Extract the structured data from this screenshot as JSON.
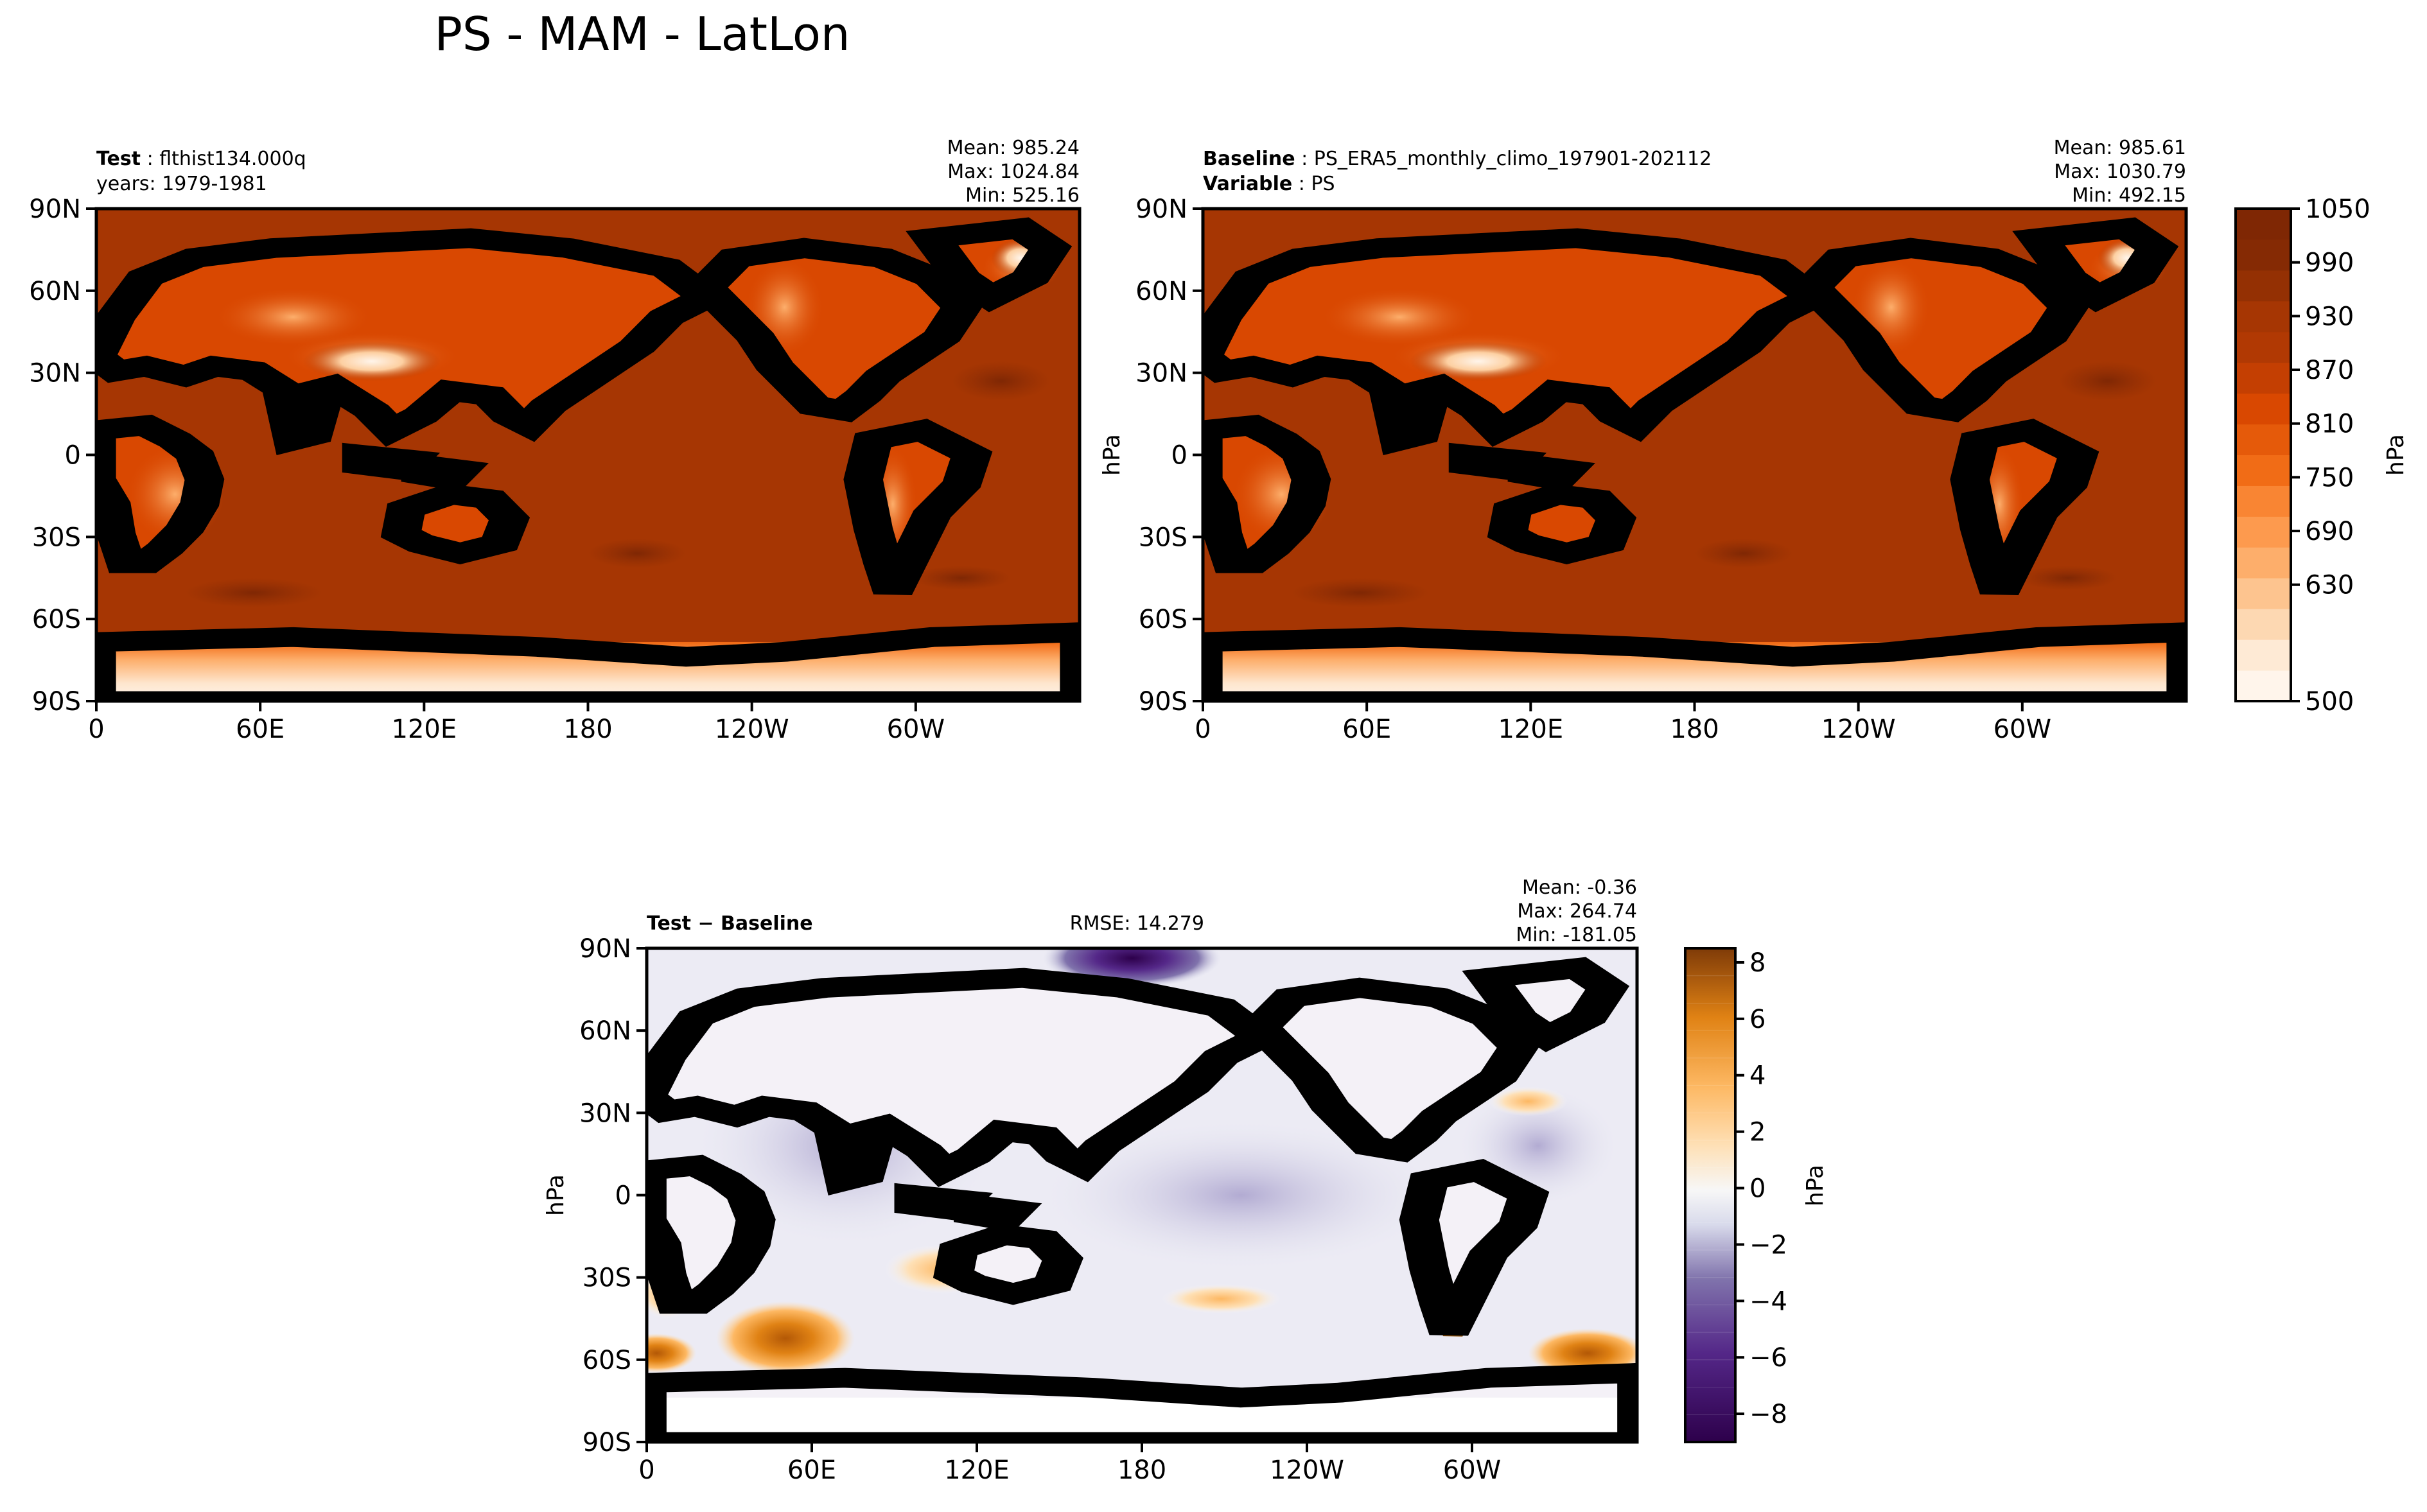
{
  "figure": {
    "title": "PS - MAM - LatLon"
  },
  "chart_data": [
    {
      "type": "heatmap",
      "panel": "test",
      "labels": {
        "test_key": "Test",
        "test_value": "flthist134.000q",
        "years": "years: 1979-1981"
      },
      "stats": [
        "Mean: 985.24",
        "Max: 1024.84",
        "Min: 525.16"
      ],
      "lon_ticks": [
        "0",
        "60E",
        "120E",
        "180",
        "120W",
        "60W"
      ],
      "lat_ticks": [
        "90N",
        "60N",
        "30N",
        "0",
        "30S",
        "60S",
        "90S"
      ],
      "colormap": "Oranges"
    },
    {
      "type": "heatmap",
      "panel": "baseline",
      "labels": {
        "baseline_key": "Baseline",
        "baseline_value": "PS_ERA5_monthly_climo_197901-202112",
        "variable_key": "Variable",
        "variable_value": "PS"
      },
      "stats": [
        "Mean: 985.61",
        "Max: 1030.79",
        "Min: 492.15"
      ],
      "ylabel": "hPa",
      "lon_ticks": [
        "0",
        "60E",
        "120E",
        "180",
        "120W",
        "60W"
      ],
      "lat_ticks": [
        "90N",
        "60N",
        "30N",
        "0",
        "30S",
        "60S",
        "90S"
      ],
      "colorbar": {
        "label": "hPa",
        "ticks": [
          "500",
          "630",
          "690",
          "750",
          "810",
          "870",
          "930",
          "990",
          "1050"
        ],
        "range": [
          500,
          1050
        ],
        "levels": 16
      },
      "colormap": "Oranges"
    },
    {
      "type": "heatmap",
      "panel": "difference",
      "labels": {
        "title": "Test − Baseline",
        "rmse": "RMSE: 14.279"
      },
      "stats": [
        "Mean: -0.36",
        "Max: 264.74",
        "Min: -181.05"
      ],
      "ylabel": "hPa",
      "lon_ticks": [
        "0",
        "60E",
        "120E",
        "180",
        "120W",
        "60W"
      ],
      "lat_ticks": [
        "90N",
        "60N",
        "30N",
        "0",
        "30S",
        "60S",
        "90S"
      ],
      "colorbar": {
        "label": "hPa",
        "ticks": [
          "8",
          "6",
          "4",
          "2",
          "0",
          "−2",
          "−4",
          "−6",
          "−8"
        ],
        "range": [
          -9,
          8.5
        ],
        "levels": 18
      },
      "colormap": "PuOr_r"
    }
  ]
}
